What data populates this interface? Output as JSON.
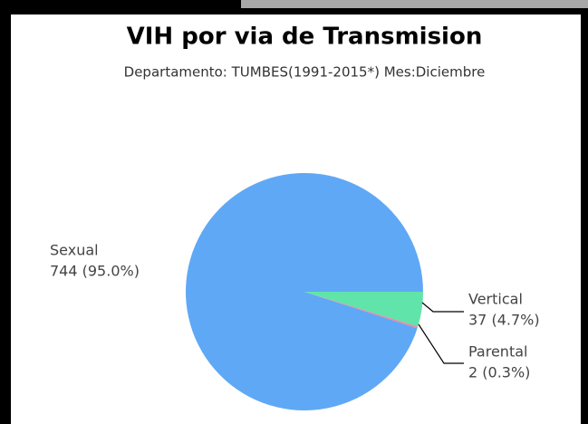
{
  "chart_data": {
    "type": "pie",
    "title": "VIH por via de Transmision",
    "subtitle": "Departamento: TUMBES(1991-2015*) Mes:Diciembre",
    "categories": [
      "Sexual",
      "Vertical",
      "Parental"
    ],
    "values": [
      744,
      37,
      2
    ],
    "value_labels": [
      "744 (95.0%)",
      "37 (4.7%)",
      "2 (0.3%)"
    ],
    "colors": [
      "#5fa8f5",
      "#60e4aa",
      "#e98aa6"
    ]
  }
}
